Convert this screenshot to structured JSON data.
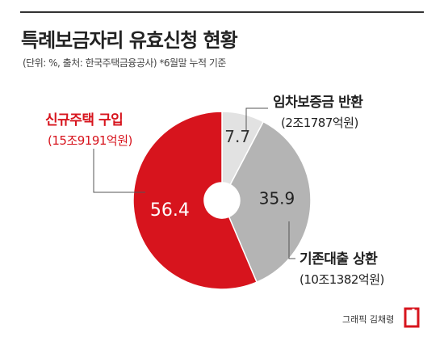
{
  "title": "특례보금자리 유효신청 현황",
  "subtitle": "(단위: %, 출처: 한국주택금융공사) *6월말 누적 기준",
  "credit": "그래픽 김채령",
  "chart_data": {
    "type": "pie",
    "donut": true,
    "categories": [
      "임차보증금 반환",
      "기존대출 상환",
      "신규주택 구입"
    ],
    "values": [
      7.7,
      35.9,
      56.4
    ],
    "value_labels": [
      "7.7",
      "35.9",
      "56.4"
    ],
    "amounts": [
      "(2조1787억원)",
      "(10조1382억원)",
      "(15조9191억원)"
    ],
    "colors": [
      "#e2e2e2",
      "#b4b4b4",
      "#d7141d"
    ],
    "value_label_colors": [
      "#333333",
      "#222222",
      "#ffffff"
    ]
  },
  "labels": {
    "new_purchase": {
      "name": "신규주택 구입",
      "amount": "(15조9191억원)"
    },
    "deposit_return": {
      "name": "임차보증금 반환",
      "amount": "(2조1787억원)"
    },
    "refinance": {
      "name": "기존대출 상환",
      "amount": "(10조1382억원)"
    }
  }
}
